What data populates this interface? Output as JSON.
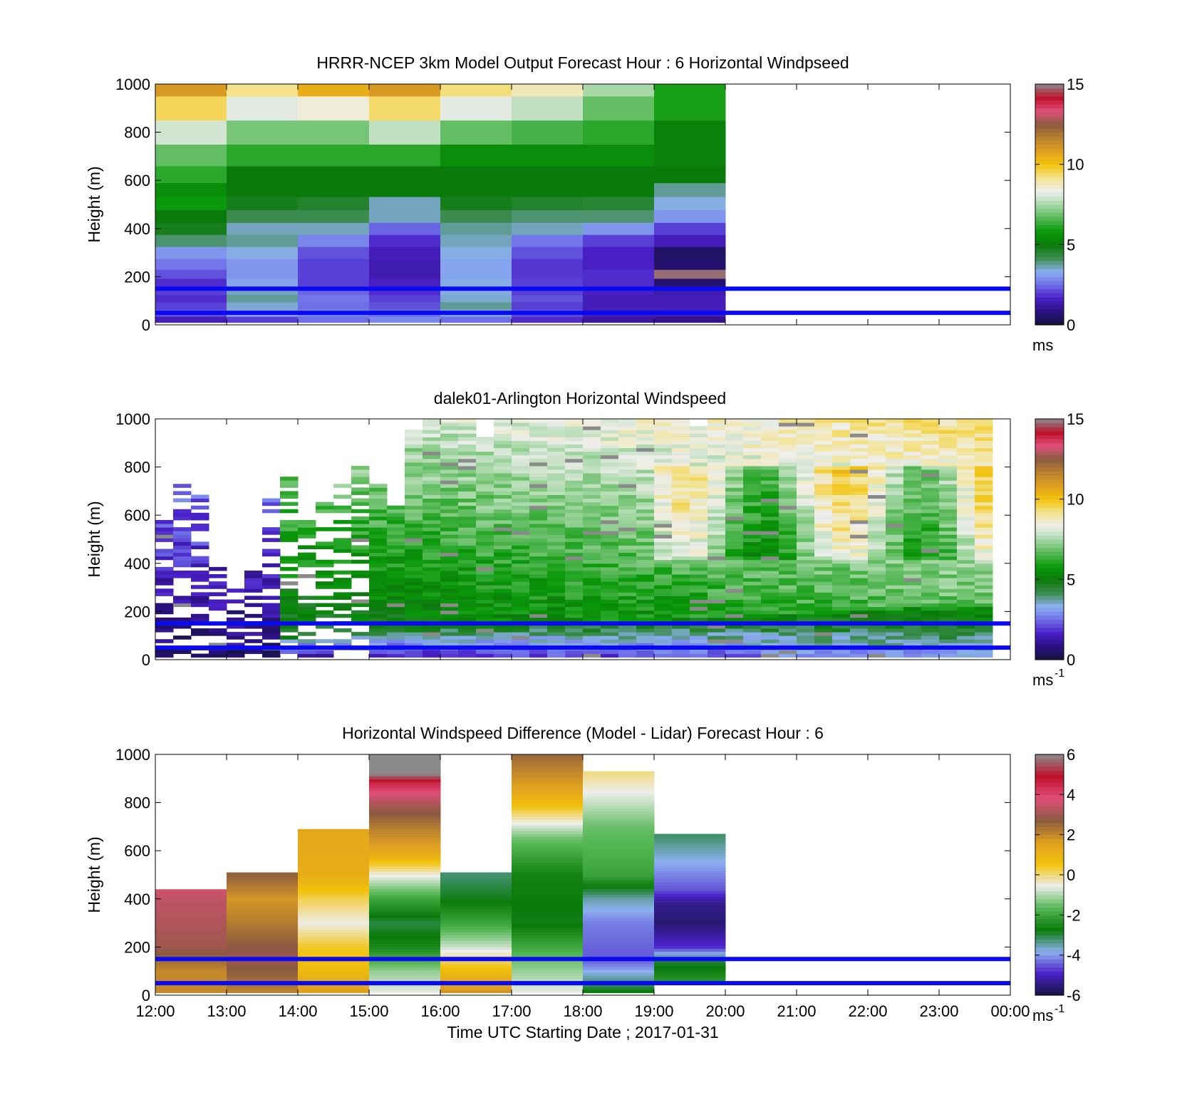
{
  "figure": {
    "xlabel": "Time UTC  Starting Date ; 2017-01-31",
    "x_ticks": [
      "12:00",
      "13:00",
      "14:00",
      "15:00",
      "16:00",
      "17:00",
      "18:00",
      "19:00",
      "20:00",
      "21:00",
      "22:00",
      "23:00",
      "00:00"
    ]
  },
  "colors": {
    "windspeed_scale": [
      "#151540",
      "#2b1080",
      "#4a20c8",
      "#6e6ee8",
      "#8cb0f0",
      "#3c8c50",
      "#0a7a0a",
      "#0a9a0a",
      "#56b856",
      "#a8d8a8",
      "#eeeeec",
      "#f3e390",
      "#f2c20a",
      "#e0a020",
      "#b88030",
      "#8a5a40",
      "#e0507a",
      "#c0102a",
      "#8a8a8a"
    ],
    "diff_scale": [
      "#151540",
      "#4a20c8",
      "#8cb0f0",
      "#0a7a0a",
      "#56b856",
      "#eeeeec",
      "#f2c20a",
      "#e0a020",
      "#8a5a40",
      "#e0507a",
      "#c0102a",
      "#8a8a8a"
    ],
    "reference_line": "#0a0af0"
  },
  "chart_data": [
    {
      "type": "heatmap",
      "title": "HRRR-NCEP 3km Model Output   Forecast Hour : 6 Horizontal Windpseed",
      "ylabel": "Height (m)",
      "ylim": [
        0,
        1000
      ],
      "y_ticks": [
        "0",
        "200",
        "400",
        "600",
        "800",
        "1000"
      ],
      "colorbar": {
        "range": [
          0,
          15
        ],
        "ticks": [
          "0",
          "5",
          "10",
          "15"
        ],
        "unit": "ms"
      },
      "x_hours": [
        12,
        13,
        14,
        15,
        16,
        17,
        18,
        19
      ],
      "y_levels_m": [
        20,
        50,
        80,
        110,
        140,
        175,
        210,
        250,
        300,
        350,
        400,
        450,
        505,
        560,
        620,
        700,
        800,
        900,
        1000
      ],
      "values": [
        [
          1.5,
          2.0,
          2.5,
          2.8,
          2.5,
          1.8,
          1.2,
          1.0
        ],
        [
          2.2,
          3.2,
          2.8,
          2.5,
          3.5,
          2.2,
          1.5,
          1.5
        ],
        [
          2.0,
          3.5,
          2.5,
          2.2,
          3.8,
          2.0,
          1.5,
          1.5
        ],
        [
          1.8,
          3.8,
          2.6,
          2.0,
          3.5,
          2.2,
          1.5,
          1.5
        ],
        [
          2.0,
          3.6,
          2.4,
          1.8,
          3.4,
          2.0,
          1.6,
          1.4
        ],
        [
          1.8,
          3.2,
          2.0,
          1.6,
          3.4,
          2.0,
          1.8,
          0.6
        ],
        [
          2.2,
          3.0,
          2.0,
          1.4,
          3.2,
          1.9,
          1.8,
          14.8
        ],
        [
          2.6,
          3.0,
          2.0,
          1.4,
          3.2,
          1.9,
          1.6,
          0.6
        ],
        [
          3.0,
          3.4,
          2.2,
          1.5,
          3.4,
          2.2,
          1.6,
          0.5
        ],
        [
          4.0,
          3.8,
          2.8,
          1.8,
          3.6,
          2.6,
          2.0,
          1.5
        ],
        [
          4.8,
          3.6,
          3.6,
          2.4,
          3.8,
          3.6,
          3.0,
          2.0
        ],
        [
          5.0,
          4.2,
          4.2,
          3.6,
          4.2,
          4.0,
          4.0,
          3.0
        ],
        [
          5.8,
          4.8,
          4.6,
          3.6,
          4.8,
          4.6,
          4.5,
          3.4
        ],
        [
          5.5,
          5.0,
          5.0,
          5.0,
          5.0,
          5.0,
          5.0,
          3.8
        ],
        [
          6.2,
          5.0,
          5.0,
          5.0,
          5.0,
          5.0,
          5.0,
          5.0
        ],
        [
          6.8,
          6.2,
          6.2,
          6.2,
          5.5,
          5.5,
          5.5,
          5.2
        ],
        [
          8.0,
          7.0,
          7.0,
          7.8,
          6.8,
          6.5,
          6.2,
          5.2
        ],
        [
          9.5,
          8.2,
          8.5,
          9.4,
          8.2,
          7.8,
          6.8,
          6.0
        ],
        [
          11.0,
          9.2,
          10.5,
          11.0,
          9.3,
          8.8,
          7.5,
          6.0
        ]
      ],
      "reference_lines_m": [
        50,
        150
      ]
    },
    {
      "type": "heatmap",
      "title": "dalek01-Arlington  Horizontal Windspeed",
      "ylabel": "Height (m)",
      "ylim": [
        0,
        1000
      ],
      "y_ticks": [
        "0",
        "200",
        "400",
        "600",
        "800",
        "1000"
      ],
      "colorbar": {
        "range": [
          0,
          15
        ],
        "ticks": [
          "0",
          "5",
          "10",
          "15"
        ],
        "unit": "ms",
        "unit_exp": "-1"
      },
      "x_range_hours": [
        12.0,
        23.75
      ],
      "n_columns": 47,
      "max_height_by_column_m": [
        580,
        720,
        700,
        400,
        330,
        430,
        680,
        760,
        580,
        650,
        720,
        800,
        720,
        640,
        950,
        1000,
        1000,
        1000,
        920,
        1000,
        990,
        1000,
        1000,
        1000,
        1000,
        1000,
        1000,
        1000,
        1000,
        1000,
        960,
        1000,
        1000,
        1000,
        1000,
        1000,
        1000,
        1000,
        1000,
        1000,
        1000,
        1000,
        1000,
        1000,
        1000,
        1000,
        1000
      ],
      "profile_note_values": {
        "near_surface_ms": [
          0.5,
          4.0
        ],
        "mid_level_ms": [
          4.0,
          8.0
        ],
        "upper_level_ms": [
          5.0,
          9.5
        ]
      },
      "reference_lines_m": [
        50,
        150
      ]
    },
    {
      "type": "heatmap",
      "title": "Horizontal Windspeed Difference (Model - Lidar) Forecast Hour : 6",
      "ylabel": "Height (m)",
      "ylim": [
        0,
        1000
      ],
      "y_ticks": [
        "0",
        "200",
        "400",
        "600",
        "800",
        "1000"
      ],
      "colorbar": {
        "range": [
          -6,
          6
        ],
        "ticks": [
          "-6",
          "-4",
          "-2",
          "0",
          "2",
          "4",
          "6"
        ],
        "unit": "ms",
        "unit_exp": "-1"
      },
      "x_hours": [
        12,
        13,
        14,
        15,
        16,
        17,
        18,
        19
      ],
      "column_top_m": [
        440,
        510,
        690,
        1000,
        510,
        1000,
        930,
        670
      ],
      "column_profiles": [
        [
          [
            0,
            2.0
          ],
          [
            100,
            2.0
          ],
          [
            200,
            3.0
          ],
          [
            300,
            3.2
          ],
          [
            400,
            3.4
          ],
          [
            430,
            3.6
          ]
        ],
        [
          [
            0,
            2.0
          ],
          [
            150,
            3.0
          ],
          [
            300,
            2.2
          ],
          [
            400,
            1.8
          ],
          [
            500,
            2.6
          ]
        ],
        [
          [
            0,
            1.8
          ],
          [
            100,
            0.8
          ],
          [
            200,
            0.4
          ],
          [
            300,
            -0.5
          ],
          [
            400,
            0.2
          ],
          [
            500,
            1.2
          ],
          [
            680,
            1.4
          ]
        ],
        [
          [
            0,
            -0.5
          ],
          [
            100,
            -1.2
          ],
          [
            200,
            -2.5
          ],
          [
            300,
            -3.0
          ],
          [
            400,
            -2.0
          ],
          [
            500,
            -0.5
          ],
          [
            600,
            1.5
          ],
          [
            700,
            2.2
          ],
          [
            800,
            3.2
          ],
          [
            880,
            4.5
          ],
          [
            920,
            6.0
          ],
          [
            1000,
            6.5
          ]
        ],
        [
          [
            0,
            2.0
          ],
          [
            100,
            0.8
          ],
          [
            200,
            -0.8
          ],
          [
            300,
            -2.0
          ],
          [
            400,
            -2.8
          ],
          [
            500,
            -3.2
          ]
        ],
        [
          [
            0,
            -0.5
          ],
          [
            150,
            -1.5
          ],
          [
            300,
            -2.8
          ],
          [
            500,
            -2.6
          ],
          [
            650,
            -1.5
          ],
          [
            750,
            0.0
          ],
          [
            850,
            1.5
          ],
          [
            1000,
            2.5
          ]
        ],
        [
          [
            0,
            -2.5
          ],
          [
            150,
            -4.5
          ],
          [
            300,
            -4.2
          ],
          [
            400,
            -3.5
          ],
          [
            500,
            -2.0
          ],
          [
            700,
            -1.5
          ],
          [
            850,
            -0.5
          ],
          [
            930,
            0.0
          ]
        ],
        [
          [
            50,
            -2.2
          ],
          [
            150,
            -3.0
          ],
          [
            200,
            -4.8
          ],
          [
            300,
            -5.6
          ],
          [
            380,
            -5.4
          ],
          [
            440,
            -4.5
          ],
          [
            660,
            -3.2
          ]
        ]
      ],
      "reference_lines_m": [
        50,
        150
      ]
    }
  ]
}
